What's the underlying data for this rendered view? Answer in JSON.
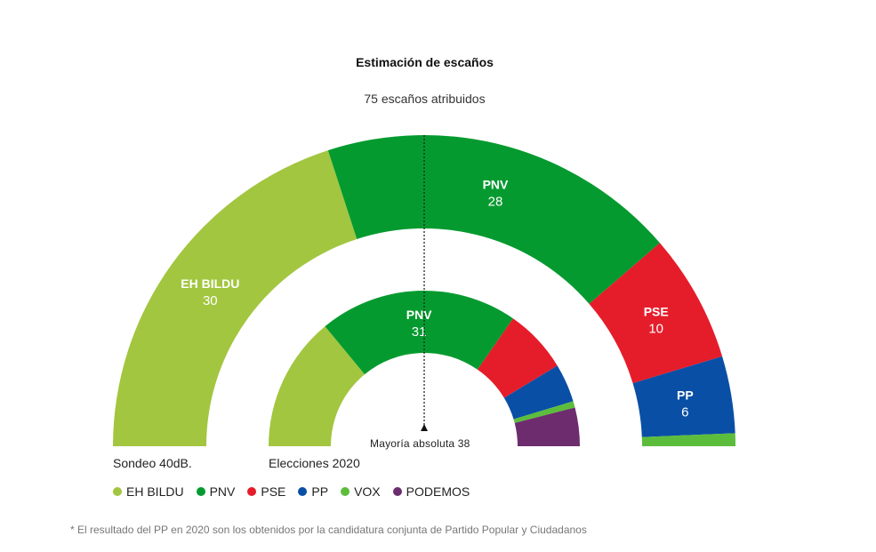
{
  "chart_data": {
    "type": "pie",
    "subtype": "semicircle-parliament",
    "title": "Estimación de escaños",
    "subtitle": "75 escaños atribuidos",
    "total_seats": 75,
    "majority": {
      "label": "Mayoría absoluta 38",
      "value": 38
    },
    "parties": [
      {
        "name": "EH BILDU",
        "color": "#a2c63f"
      },
      {
        "name": "PNV",
        "color": "#059a2f"
      },
      {
        "name": "PSE",
        "color": "#e51d2a"
      },
      {
        "name": "PP",
        "color": "#0a4fa6"
      },
      {
        "name": "VOX",
        "color": "#5cbd3c"
      },
      {
        "name": "PODEMOS",
        "color": "#6d2c6e"
      }
    ],
    "series": [
      {
        "name": "Sondeo 40dB.",
        "ring": "outer",
        "values": [
          {
            "party": "EH BILDU",
            "seats": 30,
            "label": "EH BILDU",
            "show_label": true
          },
          {
            "party": "PNV",
            "seats": 28,
            "label": "PNV",
            "show_label": true
          },
          {
            "party": "PSE",
            "seats": 10,
            "label": "PSE",
            "show_label": true
          },
          {
            "party": "PP",
            "seats": 6,
            "label": "PP",
            "show_label": true
          },
          {
            "party": "VOX",
            "seats": 1,
            "label": "VOX",
            "show_label": false
          },
          {
            "party": "PODEMOS",
            "seats": 0,
            "label": "PODEMOS",
            "show_label": false
          }
        ]
      },
      {
        "name": "Elecciones 2020",
        "ring": "inner",
        "values": [
          {
            "party": "EH BILDU",
            "seats": 21,
            "label": "EH BILDU",
            "show_label": false
          },
          {
            "party": "PNV",
            "seats": 31,
            "label": "PNV",
            "show_label": true
          },
          {
            "party": "PSE",
            "seats": 10,
            "label": "PSE",
            "show_label": false
          },
          {
            "party": "PP",
            "seats": 6,
            "label": "PP",
            "show_label": false
          },
          {
            "party": "VOX",
            "seats": 1,
            "label": "VOX",
            "show_label": false
          },
          {
            "party": "PODEMOS",
            "seats": 6,
            "label": "PODEMOS",
            "show_label": false
          }
        ]
      }
    ],
    "legend": [
      "EH BILDU",
      "PNV",
      "PSE",
      "PP",
      "VOX",
      "PODEMOS"
    ],
    "legend_position": "bottom-left",
    "footnote": "* El resultado del PP en 2020 son los obtenidos por la candidatura conjunta de Partido Popular y Ciudadanos"
  }
}
